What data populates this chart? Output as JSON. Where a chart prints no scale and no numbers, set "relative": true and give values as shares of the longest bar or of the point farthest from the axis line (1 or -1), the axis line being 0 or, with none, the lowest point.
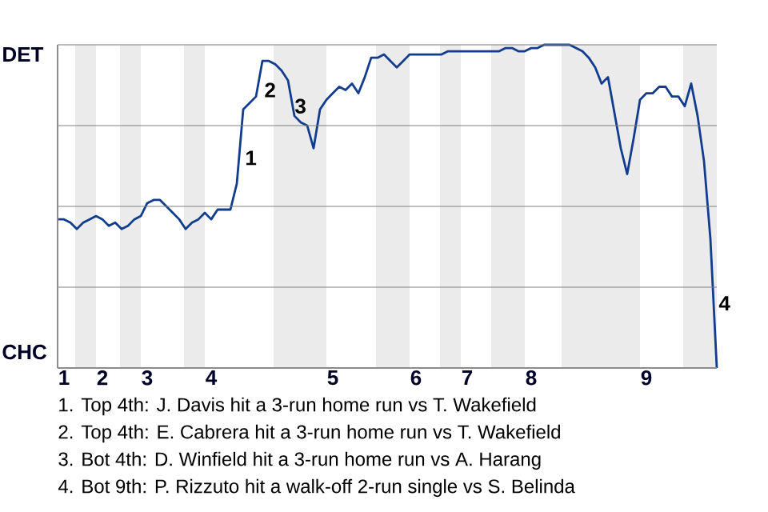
{
  "chart_data": {
    "type": "line",
    "relative": true,
    "categories": [
      null,
      "1",
      null,
      null,
      null,
      null,
      null,
      "2",
      null,
      null,
      null,
      null,
      null,
      null,
      "3",
      null,
      null,
      null,
      null,
      null,
      null,
      null,
      null,
      null,
      "4",
      null,
      null,
      null,
      null,
      null,
      null,
      null,
      null,
      null,
      null,
      null,
      null,
      null,
      null,
      null,
      null,
      null,
      null,
      "5",
      null,
      null,
      null,
      null,
      null,
      null,
      null,
      null,
      null,
      null,
      null,
      null,
      "6",
      null,
      null,
      null,
      null,
      null,
      null,
      null,
      "7",
      null,
      null,
      null,
      null,
      null,
      null,
      null,
      null,
      null,
      "8",
      null,
      null,
      null,
      null,
      null,
      null,
      null,
      null,
      null,
      null,
      null,
      null,
      null,
      null,
      null,
      null,
      null,
      "9",
      null,
      null,
      null,
      null,
      null,
      null,
      null,
      null,
      null,
      null,
      null
    ],
    "grid": "y",
    "series": [
      {
        "color": "#123c8c",
        "values": [
          0.46,
          0.46,
          0.45,
          0.43,
          0.45,
          0.46,
          0.47,
          0.46,
          0.44,
          0.45,
          0.43,
          0.44,
          0.46,
          0.47,
          0.51,
          0.52,
          0.52,
          0.5,
          0.48,
          0.46,
          0.43,
          0.45,
          0.46,
          0.48,
          0.46,
          0.49,
          0.49,
          0.49,
          0.57,
          0.8,
          0.82,
          0.84,
          0.95,
          0.95,
          0.94,
          0.92,
          0.89,
          0.78,
          0.76,
          0.75,
          0.68,
          0.8,
          0.83,
          0.85,
          0.87,
          0.86,
          0.88,
          0.85,
          0.9,
          0.96,
          0.96,
          0.97,
          0.95,
          0.93,
          0.95,
          0.97,
          0.97,
          0.97,
          0.97,
          0.97,
          0.97,
          0.98,
          0.98,
          0.98,
          0.98,
          0.98,
          0.98,
          0.98,
          0.98,
          0.98,
          0.99,
          0.99,
          0.98,
          0.98,
          0.99,
          0.99,
          1,
          1,
          1,
          1,
          1,
          0.99,
          0.98,
          0.96,
          0.93,
          0.88,
          0.9,
          0.79,
          0.68,
          0.6,
          0.71,
          0.83,
          0.85,
          0.85,
          0.87,
          0.87,
          0.84,
          0.84,
          0.81,
          0.88,
          0.78,
          0.64,
          0.4,
          0
        ]
      }
    ],
    "annotations": [
      "1",
      "2",
      "3",
      "4",
      "DET",
      "CHC",
      "1. Top 4th: J. Davis hit a 3-run home run vs T. Wakefield",
      "2. Top 4th: E. Cabrera hit a 3-run home run vs T. Wakefield",
      "3. Bot 4th: D. Winfield hit a 3-run home run vs A. Harang",
      "4. Bot 9th: P. Rizzuto hit a walk-off 2-run single vs S. Belinda"
    ]
  }
}
